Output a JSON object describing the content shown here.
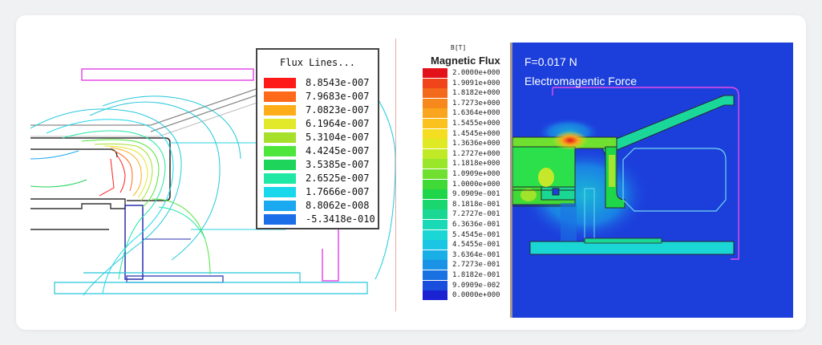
{
  "flux_lines_legend": {
    "title": "Flux Lines...",
    "entries": [
      {
        "label": "8.8543e-007",
        "color": "#ff1a1a"
      },
      {
        "label": "7.9683e-007",
        "color": "#ff6a1a"
      },
      {
        "label": "7.0823e-007",
        "color": "#ffae1a"
      },
      {
        "label": "6.1964e-007",
        "color": "#e2e82a"
      },
      {
        "label": "5.3104e-007",
        "color": "#a6e02a"
      },
      {
        "label": "4.4245e-007",
        "color": "#4fe63b"
      },
      {
        "label": "3.5385e-007",
        "color": "#1ed45a"
      },
      {
        "label": "2.6525e-007",
        "color": "#1fe8a4"
      },
      {
        "label": "1.7666e-007",
        "color": "#1ad8ec"
      },
      {
        "label": "8.8062e-008",
        "color": "#1aa9f0"
      },
      {
        "label": "-5.3418e-010",
        "color": "#1c6ee8"
      }
    ]
  },
  "magnetic_flux_legend": {
    "unit": "B[T]",
    "title": "Magnetic Flux",
    "entries": [
      {
        "label": "2.0000e+000",
        "color": "#e3121a"
      },
      {
        "label": "1.9091e+000",
        "color": "#f0441a"
      },
      {
        "label": "1.8182e+000",
        "color": "#f46a1c"
      },
      {
        "label": "1.7273e+000",
        "color": "#f7891c"
      },
      {
        "label": "1.6364e+000",
        "color": "#f9a61e"
      },
      {
        "label": "1.5455e+000",
        "color": "#fbc21f"
      },
      {
        "label": "1.4545e+000",
        "color": "#f5de22"
      },
      {
        "label": "1.3636e+000",
        "color": "#e0ea24"
      },
      {
        "label": "1.2727e+000",
        "color": "#c0ea26"
      },
      {
        "label": "1.1818e+000",
        "color": "#9ae62a"
      },
      {
        "label": "1.0909e+000",
        "color": "#6fe02f"
      },
      {
        "label": "1.0000e+000",
        "color": "#40da36"
      },
      {
        "label": "9.0909e-001",
        "color": "#1fd64a"
      },
      {
        "label": "8.1818e-001",
        "color": "#1ad66e"
      },
      {
        "label": "7.2727e-001",
        "color": "#1ad893"
      },
      {
        "label": "6.3636e-001",
        "color": "#1ad9b6"
      },
      {
        "label": "5.4545e-001",
        "color": "#1ad6d4"
      },
      {
        "label": "4.5455e-001",
        "color": "#1ac6e2"
      },
      {
        "label": "3.6364e-001",
        "color": "#1aaee6"
      },
      {
        "label": "2.7273e-001",
        "color": "#1a92e6"
      },
      {
        "label": "1.8182e-001",
        "color": "#1a72e2"
      },
      {
        "label": "9.0909e-002",
        "color": "#1a4edc"
      },
      {
        "label": "0.0000e+000",
        "color": "#1a22d2"
      }
    ]
  },
  "simulation": {
    "force_label": "F=0.017 N",
    "force_caption": "Electromagentic Force",
    "background": "#1c3fdc"
  }
}
